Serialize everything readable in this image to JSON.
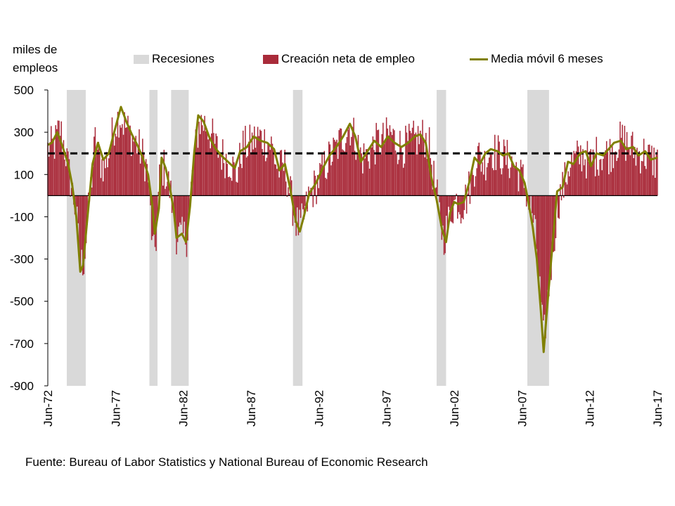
{
  "chart_data": {
    "type": "bar",
    "y_label": "miles de empleos",
    "y_label_lines": [
      "miles de",
      "empleos"
    ],
    "ylim": [
      -900,
      500
    ],
    "yticks": [
      500,
      300,
      100,
      -100,
      -300,
      -500,
      -700,
      -900
    ],
    "xlim": [
      1972.5,
      2017.5
    ],
    "xticks": [
      {
        "label": "Jun-72",
        "t": 1972.5
      },
      {
        "label": "Jun-77",
        "t": 1977.5
      },
      {
        "label": "Jun-82",
        "t": 1982.5
      },
      {
        "label": "Jun-87",
        "t": 1987.5
      },
      {
        "label": "Jun-92",
        "t": 1992.5
      },
      {
        "label": "Jun-97",
        "t": 1997.5
      },
      {
        "label": "Jun-02",
        "t": 2002.5
      },
      {
        "label": "Jun-07",
        "t": 2007.5
      },
      {
        "label": "Jun-12",
        "t": 2012.5
      },
      {
        "label": "Jun-17",
        "t": 2017.5
      }
    ],
    "legend": {
      "recessions": "Recesiones",
      "bars": "Creación neta de empleo",
      "line": "Media móvil 6 meses"
    },
    "reference_line": {
      "value": 200,
      "style": "dashed"
    },
    "recessions": [
      {
        "start": 1973.9,
        "end": 1975.3
      },
      {
        "start": 1980.0,
        "end": 1980.6
      },
      {
        "start": 1981.6,
        "end": 1982.9
      },
      {
        "start": 1990.6,
        "end": 1991.3
      },
      {
        "start": 2001.2,
        "end": 2001.9
      },
      {
        "start": 2007.9,
        "end": 2009.5
      }
    ],
    "series_bars": {
      "name": "Creación neta de empleo",
      "anchors": [
        [
          1972.5,
          220
        ],
        [
          1973.0,
          240
        ],
        [
          1973.4,
          320
        ],
        [
          1973.8,
          210
        ],
        [
          1974.2,
          60
        ],
        [
          1974.6,
          -80
        ],
        [
          1974.9,
          -330
        ],
        [
          1975.2,
          -300
        ],
        [
          1975.4,
          -150
        ],
        [
          1975.7,
          60
        ],
        [
          1976.0,
          260
        ],
        [
          1976.3,
          170
        ],
        [
          1976.7,
          140
        ],
        [
          1977.0,
          200
        ],
        [
          1977.4,
          330
        ],
        [
          1977.8,
          380
        ],
        [
          1978.2,
          330
        ],
        [
          1978.8,
          270
        ],
        [
          1979.2,
          230
        ],
        [
          1979.7,
          160
        ],
        [
          1979.9,
          100
        ],
        [
          1980.1,
          -100
        ],
        [
          1980.3,
          -300
        ],
        [
          1980.5,
          -200
        ],
        [
          1980.8,
          130
        ],
        [
          1981.1,
          130
        ],
        [
          1981.4,
          60
        ],
        [
          1981.7,
          -40
        ],
        [
          1982.0,
          -180
        ],
        [
          1982.4,
          -200
        ],
        [
          1982.8,
          -190
        ],
        [
          1983.0,
          -30
        ],
        [
          1983.3,
          180
        ],
        [
          1983.7,
          350
        ],
        [
          1984.1,
          340
        ],
        [
          1984.5,
          300
        ],
        [
          1984.9,
          230
        ],
        [
          1985.4,
          190
        ],
        [
          1986.0,
          160
        ],
        [
          1986.4,
          90
        ],
        [
          1986.9,
          230
        ],
        [
          1987.4,
          240
        ],
        [
          1988.0,
          280
        ],
        [
          1988.5,
          260
        ],
        [
          1989.0,
          240
        ],
        [
          1989.5,
          120
        ],
        [
          1990.0,
          140
        ],
        [
          1990.4,
          10
        ],
        [
          1990.8,
          -120
        ],
        [
          1991.1,
          -160
        ],
        [
          1991.4,
          -110
        ],
        [
          1991.8,
          0
        ],
        [
          1992.3,
          50
        ],
        [
          1992.8,
          120
        ],
        [
          1993.3,
          180
        ],
        [
          1993.8,
          220
        ],
        [
          1994.3,
          280
        ],
        [
          1994.8,
          330
        ],
        [
          1995.2,
          270
        ],
        [
          1995.7,
          180
        ],
        [
          1996.2,
          200
        ],
        [
          1996.8,
          250
        ],
        [
          1997.3,
          260
        ],
        [
          1997.8,
          300
        ],
        [
          1998.3,
          240
        ],
        [
          1998.8,
          230
        ],
        [
          1999.3,
          250
        ],
        [
          1999.8,
          270
        ],
        [
          2000.3,
          280
        ],
        [
          2000.7,
          220
        ],
        [
          2001.0,
          80
        ],
        [
          2001.3,
          -40
        ],
        [
          2001.7,
          -200
        ],
        [
          2002.0,
          -150
        ],
        [
          2002.3,
          -60
        ],
        [
          2002.7,
          -20
        ],
        [
          2003.0,
          -50
        ],
        [
          2003.4,
          -10
        ],
        [
          2003.8,
          80
        ],
        [
          2004.2,
          200
        ],
        [
          2004.7,
          150
        ],
        [
          2005.2,
          220
        ],
        [
          2005.7,
          200
        ],
        [
          2006.2,
          180
        ],
        [
          2006.7,
          160
        ],
        [
          2007.2,
          120
        ],
        [
          2007.7,
          60
        ],
        [
          2008.0,
          -30
        ],
        [
          2008.3,
          -90
        ],
        [
          2008.6,
          -260
        ],
        [
          2008.9,
          -500
        ],
        [
          2009.1,
          -700
        ],
        [
          2009.4,
          -500
        ],
        [
          2009.8,
          -240
        ],
        [
          2010.2,
          -20
        ],
        [
          2010.6,
          50
        ],
        [
          2011.0,
          150
        ],
        [
          2011.5,
          170
        ],
        [
          2012.0,
          200
        ],
        [
          2012.5,
          150
        ],
        [
          2013.0,
          190
        ],
        [
          2013.5,
          200
        ],
        [
          2014.0,
          200
        ],
        [
          2014.5,
          250
        ],
        [
          2015.0,
          260
        ],
        [
          2015.5,
          230
        ],
        [
          2016.0,
          200
        ],
        [
          2016.5,
          200
        ],
        [
          2017.0,
          170
        ],
        [
          2017.5,
          160
        ]
      ]
    },
    "series_line": {
      "name": "Media móvil 6 meses",
      "color": "#808000",
      "points": [
        [
          1972.5,
          240
        ],
        [
          1972.8,
          250
        ],
        [
          1973.2,
          300
        ],
        [
          1973.6,
          230
        ],
        [
          1974.0,
          150
        ],
        [
          1974.3,
          50
        ],
        [
          1974.6,
          -100
        ],
        [
          1974.9,
          -360
        ],
        [
          1975.1,
          -330
        ],
        [
          1975.4,
          -120
        ],
        [
          1975.8,
          150
        ],
        [
          1976.2,
          250
        ],
        [
          1976.6,
          170
        ],
        [
          1977.0,
          200
        ],
        [
          1977.4,
          300
        ],
        [
          1977.9,
          420
        ],
        [
          1978.3,
          350
        ],
        [
          1978.7,
          290
        ],
        [
          1979.1,
          240
        ],
        [
          1979.5,
          180
        ],
        [
          1979.9,
          100
        ],
        [
          1980.2,
          -40
        ],
        [
          1980.4,
          -180
        ],
        [
          1980.7,
          -60
        ],
        [
          1980.9,
          180
        ],
        [
          1981.2,
          130
        ],
        [
          1981.5,
          40
        ],
        [
          1981.8,
          -70
        ],
        [
          1982.0,
          -200
        ],
        [
          1982.4,
          -180
        ],
        [
          1982.7,
          -220
        ],
        [
          1983.0,
          -50
        ],
        [
          1983.3,
          200
        ],
        [
          1983.6,
          380
        ],
        [
          1984.0,
          350
        ],
        [
          1984.4,
          280
        ],
        [
          1984.8,
          230
        ],
        [
          1985.3,
          190
        ],
        [
          1985.8,
          160
        ],
        [
          1986.3,
          130
        ],
        [
          1986.7,
          210
        ],
        [
          1987.2,
          230
        ],
        [
          1987.7,
          280
        ],
        [
          1988.2,
          260
        ],
        [
          1988.7,
          250
        ],
        [
          1989.2,
          220
        ],
        [
          1989.6,
          120
        ],
        [
          1990.0,
          150
        ],
        [
          1990.4,
          30
        ],
        [
          1990.8,
          -120
        ],
        [
          1991.1,
          -170
        ],
        [
          1991.4,
          -100
        ],
        [
          1991.8,
          10
        ],
        [
          1992.3,
          60
        ],
        [
          1992.8,
          130
        ],
        [
          1993.3,
          190
        ],
        [
          1993.8,
          230
        ],
        [
          1994.3,
          280
        ],
        [
          1994.8,
          340
        ],
        [
          1995.2,
          280
        ],
        [
          1995.6,
          160
        ],
        [
          1996.1,
          210
        ],
        [
          1996.6,
          260
        ],
        [
          1997.1,
          230
        ],
        [
          1997.6,
          280
        ],
        [
          1998.1,
          250
        ],
        [
          1998.6,
          230
        ],
        [
          1999.1,
          250
        ],
        [
          1999.6,
          280
        ],
        [
          2000.0,
          290
        ],
        [
          2000.4,
          250
        ],
        [
          2000.8,
          90
        ],
        [
          2001.2,
          -20
        ],
        [
          2001.6,
          -160
        ],
        [
          2001.9,
          -220
        ],
        [
          2002.2,
          -80
        ],
        [
          2002.5,
          -30
        ],
        [
          2002.8,
          -40
        ],
        [
          2003.2,
          -30
        ],
        [
          2003.6,
          60
        ],
        [
          2004.0,
          180
        ],
        [
          2004.4,
          150
        ],
        [
          2004.8,
          200
        ],
        [
          2005.2,
          220
        ],
        [
          2005.7,
          210
        ],
        [
          2006.1,
          190
        ],
        [
          2006.5,
          200
        ],
        [
          2006.9,
          140
        ],
        [
          2007.3,
          120
        ],
        [
          2007.7,
          60
        ],
        [
          2008.0,
          -40
        ],
        [
          2008.3,
          -150
        ],
        [
          2008.6,
          -300
        ],
        [
          2008.9,
          -550
        ],
        [
          2009.1,
          -740
        ],
        [
          2009.4,
          -500
        ],
        [
          2009.8,
          -200
        ],
        [
          2010.1,
          20
        ],
        [
          2010.5,
          40
        ],
        [
          2010.9,
          160
        ],
        [
          2011.3,
          150
        ],
        [
          2011.8,
          200
        ],
        [
          2012.2,
          210
        ],
        [
          2012.6,
          140
        ],
        [
          2013.0,
          200
        ],
        [
          2013.5,
          190
        ],
        [
          2013.9,
          220
        ],
        [
          2014.3,
          250
        ],
        [
          2014.8,
          260
        ],
        [
          2015.2,
          220
        ],
        [
          2015.7,
          230
        ],
        [
          2016.1,
          190
        ],
        [
          2016.6,
          210
        ],
        [
          2017.0,
          170
        ],
        [
          2017.5,
          180
        ]
      ]
    }
  },
  "colors": {
    "bars": "#A92B3A",
    "line": "#808000",
    "recession": "#D9D9D9",
    "reference": "#000000",
    "axis": "#000000"
  },
  "source": "Fuente: Bureau of Labor Statistics y National Bureau of Economic Research"
}
